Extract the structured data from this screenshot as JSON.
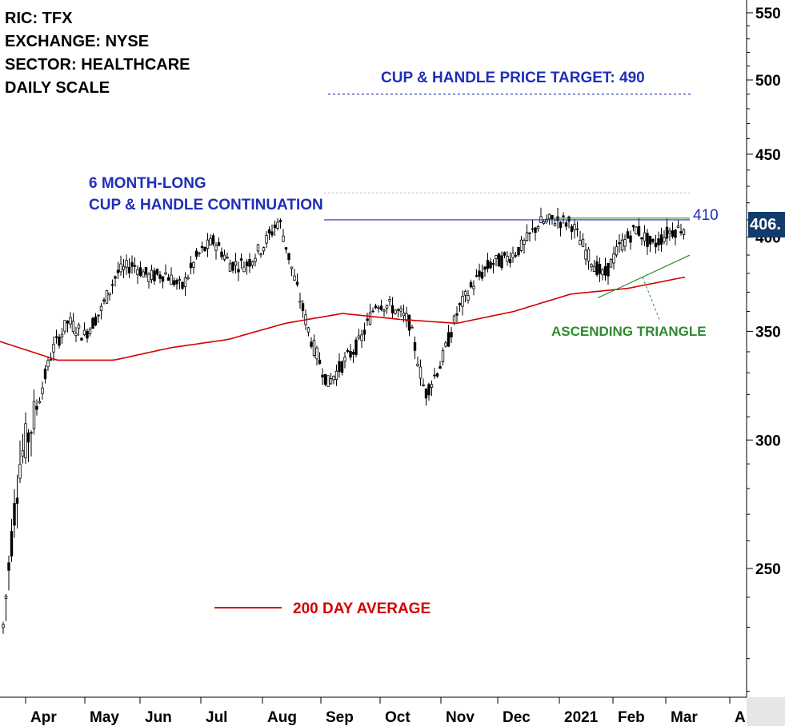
{
  "header": {
    "ric": "RIC: TFX",
    "exchange": "EXCHANGE: NYSE",
    "sector": "SECTOR: HEALTHCARE",
    "scale": "DAILY SCALE"
  },
  "annotations": {
    "target": "CUP & HANDLE PRICE TARGET: 490",
    "pattern_line1": "6 MONTH-LONG",
    "pattern_line2": "CUP & HANDLE CONTINUATION",
    "resistance": "410",
    "triangle": "ASCENDING TRIANGLE",
    "legend": "200 DAY AVERAGE",
    "last_price": "406."
  },
  "colors": {
    "candle": "#000000",
    "ma200": "#d40000",
    "blue": "#1f2fb8",
    "green": "#2e8b2e",
    "badge": "#123a6b"
  },
  "chart_data": {
    "type": "candlestick",
    "ticker": "TFX",
    "scale": "log",
    "ylim": [
      200,
      570
    ],
    "y_ticks": [
      250,
      300,
      350,
      400,
      450,
      500,
      550
    ],
    "x_tick_labels": [
      "Apr",
      "May",
      "Jun",
      "Jul",
      "Aug",
      "Sep",
      "Oct",
      "Nov",
      "Dec",
      "2021",
      "Feb",
      "Mar",
      "A"
    ],
    "price_path_approx": [
      [
        "Mar",
        230
      ],
      [
        "Mar",
        290
      ],
      [
        "Apr",
        312
      ],
      [
        "Apr",
        340
      ],
      [
        "Apr",
        355
      ],
      [
        "May",
        348
      ],
      [
        "May",
        360
      ],
      [
        "May",
        380
      ],
      [
        "Jun",
        385
      ],
      [
        "Jun",
        378
      ],
      [
        "Jun",
        380
      ],
      [
        "Jul",
        372
      ],
      [
        "Jul",
        390
      ],
      [
        "Jul",
        398
      ],
      [
        "Aug",
        385
      ],
      [
        "Aug",
        385
      ],
      [
        "Aug",
        395
      ],
      [
        "Aug",
        410
      ],
      [
        "Sep",
        375
      ],
      [
        "Sep",
        345
      ],
      [
        "Sep",
        325
      ],
      [
        "Sep",
        335
      ],
      [
        "Oct",
        345
      ],
      [
        "Oct",
        365
      ],
      [
        "Oct",
        362
      ],
      [
        "Oct",
        355
      ],
      [
        "Oct",
        320
      ],
      [
        "Nov",
        335
      ],
      [
        "Nov",
        360
      ],
      [
        "Nov",
        375
      ],
      [
        "Nov",
        385
      ],
      [
        "Dec",
        388
      ],
      [
        "Dec",
        395
      ],
      [
        "Dec",
        408
      ],
      [
        "Dec",
        410
      ],
      [
        "2021",
        408
      ],
      [
        "2021",
        390
      ],
      [
        "2021",
        378
      ],
      [
        "Feb",
        395
      ],
      [
        "Feb",
        405
      ],
      [
        "Feb",
        395
      ],
      [
        "Mar",
        403
      ],
      [
        "Mar",
        406
      ]
    ],
    "ma200_path_approx": [
      [
        "Mar",
        345
      ],
      [
        "Apr",
        336
      ],
      [
        "May",
        336
      ],
      [
        "Jun",
        342
      ],
      [
        "Jul",
        346
      ],
      [
        "Aug",
        354
      ],
      [
        "Sep",
        359
      ],
      [
        "Oct",
        356
      ],
      [
        "Nov",
        354
      ],
      [
        "Dec",
        360
      ],
      [
        "2021",
        369
      ],
      [
        "Feb",
        372
      ],
      [
        "Mar",
        378
      ]
    ],
    "levels": {
      "resistance": 410,
      "price_target": 490,
      "last_price": 406
    }
  }
}
